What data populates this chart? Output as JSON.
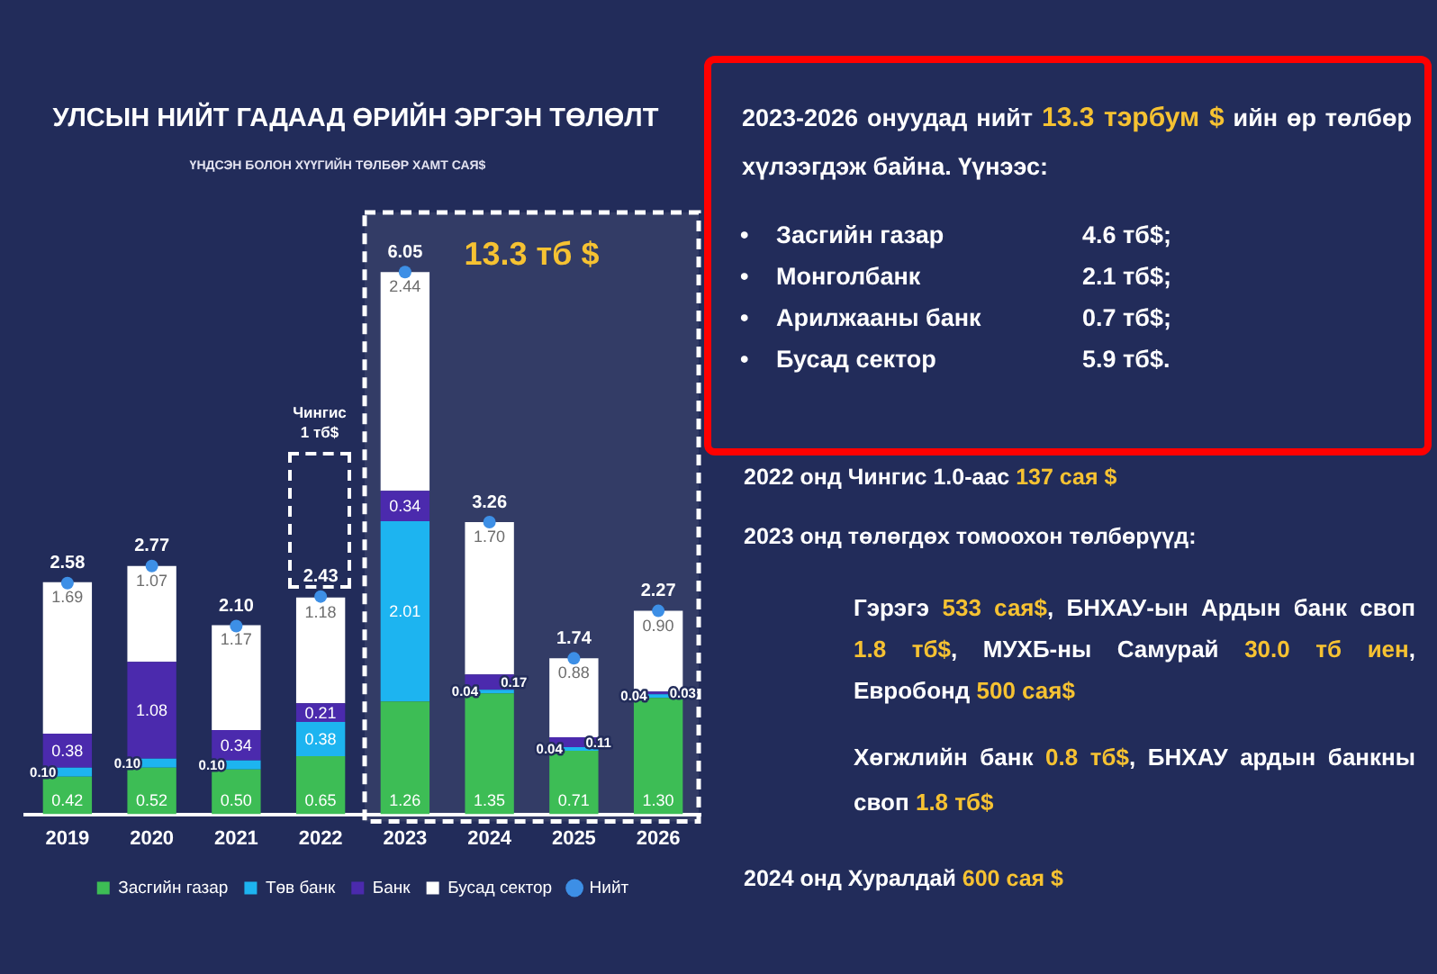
{
  "chart_data": {
    "type": "bar",
    "title": "УЛСЫН НИЙТ ГАДААД ӨРИЙН ЭРГЭН ТӨЛӨЛТ",
    "subtitle": "ҮНДСЭН БОЛОН ХҮҮГИЙН ТӨЛБӨР ХАМТ САЯ$",
    "categories": [
      "2019",
      "2020",
      "2021",
      "2022",
      "2023",
      "2024",
      "2025",
      "2026"
    ],
    "stacked": true,
    "series": [
      {
        "name": "Засгийн газар",
        "color": "#3dbd55",
        "values": [
          0.42,
          0.52,
          0.5,
          0.65,
          1.26,
          1.35,
          0.71,
          1.3
        ],
        "value_labels": [
          "0.42",
          "0.52",
          "0.50",
          "0.65",
          "1.26",
          "1.35",
          "0.71",
          "1.30"
        ]
      },
      {
        "name": "Төв банк",
        "color": "#1db4f0",
        "values": [
          0.1,
          0.1,
          0.1,
          0.38,
          2.01,
          0.04,
          0.04,
          0.04
        ],
        "value_labels": [
          "0.10",
          "0.10",
          "0.10",
          "0.38",
          "2.01",
          "0.04",
          "0.04",
          "0.04"
        ]
      },
      {
        "name": "Банк",
        "color": "#4b2aad",
        "values": [
          0.38,
          1.08,
          0.34,
          0.21,
          0.34,
          0.17,
          0.11,
          0.03
        ],
        "value_labels": [
          "0.38",
          "1.08",
          "0.34",
          "0.21",
          "0.34",
          "0.17",
          "0.11",
          "0.03"
        ]
      },
      {
        "name": "Бусад сектор",
        "color": "#ffffff",
        "values": [
          1.69,
          1.07,
          1.17,
          1.18,
          2.44,
          1.7,
          0.88,
          0.9
        ],
        "value_labels": [
          "1.69",
          "1.07",
          "1.17",
          "1.18",
          "2.44",
          "1.70",
          "0.88",
          "0.90"
        ]
      },
      {
        "name": "Нийт",
        "type": "scatter",
        "color": "#3d8fe6",
        "values": [
          2.58,
          2.77,
          2.1,
          2.43,
          6.05,
          3.26,
          1.74,
          2.27
        ],
        "value_labels": [
          "2.58",
          "2.77",
          "2.10",
          "2.43",
          "6.05",
          "3.26",
          "1.74",
          "2.27"
        ]
      }
    ],
    "marker": "circle",
    "legend": "bottom",
    "bands": [
      {
        "axis": "x",
        "from": "2023",
        "to": "2026",
        "label": "13.3 тб $",
        "color": "#ffffff"
      }
    ],
    "annotations": [
      "Чингис 1 тб$",
      "2023-2026 онуудад нийт 13.3 тэрбум $ ийн өр төлбөр хүлээгдэж байна. Үүнээс:",
      "• Засгийн газар 4.6 тб$;",
      "• Монголбанк 2.1 тб$;",
      "• Арилжааны банк 0.7 тб$;",
      "• Бусад сектор 5.9 тб$.",
      "2022 онд Чингис 1.0-аас 137 сая $",
      "2023 онд төлөгдөх томоохон төлбөрүүд:",
      "Гэрэгэ 533 сая$, БНХАУ-ын Ардын банк своп 1.8 тб$, МУХБ-ны Самурай 30.0 тб иен, Евробонд 500 сая$",
      "Хөгжлийн банк 0.8 тб$, БНХАУ ардын банкны своп 1.8 тб$",
      "2024 онд Хуралдай 600 сая $"
    ]
  }
}
